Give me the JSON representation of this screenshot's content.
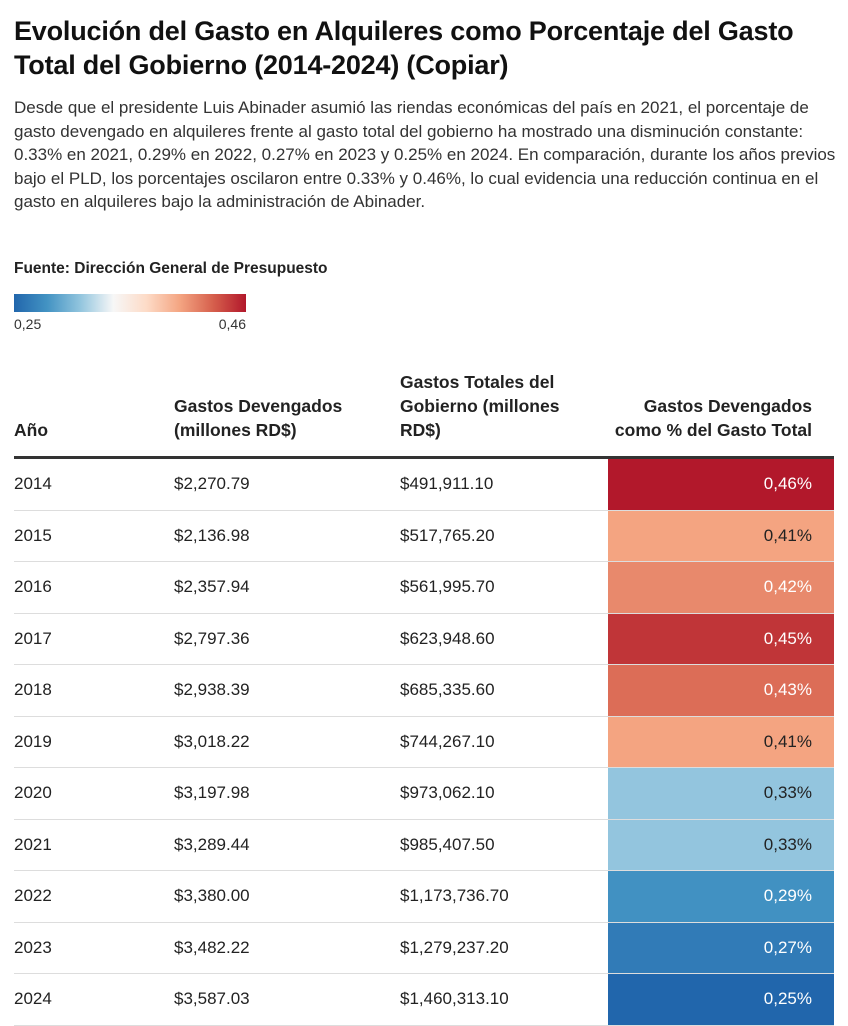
{
  "title": "Evolución del Gasto en Alquileres como Porcentaje del Gasto Total del Gobierno (2014-2024) (Copiar)",
  "description": "Desde que el presidente Luis Abinader asumió las riendas económicas del país en 2021, el porcentaje de gasto devengado en alquileres frente al gasto total del gobierno ha mostrado una disminución constante: 0.33% en 2021, 0.29% en 2022, 0.27% en 2023 y 0.25% en 2024. En comparación, durante los años previos bajo el PLD, los porcentajes oscilaron entre 0.33% y 0.46%, lo cual evidencia una reducción continua en el gasto en alquileres bajo la administración de Abinader.",
  "source": "Fuente: Dirección General de Presupuesto",
  "legend": {
    "min_label": "0,25",
    "max_label": "0,46",
    "min_color": "#2166ac",
    "max_color": "#b2182b"
  },
  "chart_data": {
    "type": "table",
    "columns": [
      "Año",
      "Gastos Devengados (millones RD$)",
      "Gastos Totales del Gobierno (millones RD$)",
      "Gastos Devengados como % del Gasto Total"
    ],
    "color_scale": {
      "min": 0.25,
      "max": 0.46
    },
    "rows": [
      {
        "year": "2014",
        "devengados": "$2,270.79",
        "totales": "$491,911.10",
        "pct_label": "0,46%",
        "pct": 0.46
      },
      {
        "year": "2015",
        "devengados": "$2,136.98",
        "totales": "$517,765.20",
        "pct_label": "0,41%",
        "pct": 0.41
      },
      {
        "year": "2016",
        "devengados": "$2,357.94",
        "totales": "$561,995.70",
        "pct_label": "0,42%",
        "pct": 0.42
      },
      {
        "year": "2017",
        "devengados": "$2,797.36",
        "totales": "$623,948.60",
        "pct_label": "0,45%",
        "pct": 0.45
      },
      {
        "year": "2018",
        "devengados": "$2,938.39",
        "totales": "$685,335.60",
        "pct_label": "0,43%",
        "pct": 0.43
      },
      {
        "year": "2019",
        "devengados": "$3,018.22",
        "totales": "$744,267.10",
        "pct_label": "0,41%",
        "pct": 0.41
      },
      {
        "year": "2020",
        "devengados": "$3,197.98",
        "totales": "$973,062.10",
        "pct_label": "0,33%",
        "pct": 0.33
      },
      {
        "year": "2021",
        "devengados": "$3,289.44",
        "totales": "$985,407.50",
        "pct_label": "0,33%",
        "pct": 0.33
      },
      {
        "year": "2022",
        "devengados": "$3,380.00",
        "totales": "$1,173,736.70",
        "pct_label": "0,29%",
        "pct": 0.29
      },
      {
        "year": "2023",
        "devengados": "$3,482.22",
        "totales": "$1,279,237.20",
        "pct_label": "0,27%",
        "pct": 0.27
      },
      {
        "year": "2024",
        "devengados": "$3,587.03",
        "totales": "$1,460,313.10",
        "pct_label": "0,25%",
        "pct": 0.25
      }
    ]
  }
}
